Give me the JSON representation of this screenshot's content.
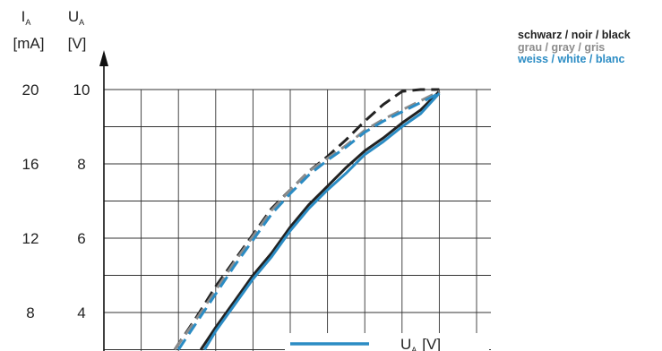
{
  "legend": [
    {
      "label": "schwarz / noir / black",
      "color": "#222222"
    },
    {
      "label": "grau / gray / gris",
      "color": "#8c8c8c"
    },
    {
      "label": "weiss / white / blanc",
      "color": "#2b8cc4"
    }
  ],
  "inline_legend": {
    "label": "U",
    "subscript": "A",
    "unit": "[V]",
    "color": "#2b8cc4"
  },
  "chart_data": {
    "type": "line",
    "title": "",
    "left_axis": {
      "label": "I",
      "subscript": "A",
      "unit": "[mA]",
      "ticks": [
        "20",
        "16",
        "12",
        "8"
      ]
    },
    "right_axis": {
      "label": "U",
      "subscript": "A",
      "unit": "[V]",
      "ticks": [
        "10",
        "8",
        "6",
        "4"
      ],
      "ylim": [
        3,
        10.4
      ]
    },
    "x_tick_labels": [],
    "grid": true,
    "series": [
      {
        "legend": "schwarz / noir / black",
        "color": "#222222",
        "style": "solid",
        "x": [
          2.6,
          3.0,
          3.5,
          4.0,
          4.5,
          5.0,
          5.5,
          6.0,
          6.5,
          7.0,
          7.5,
          8.0,
          8.5,
          9.0
        ],
        "y": [
          3.0,
          3.6,
          4.3,
          5.0,
          5.6,
          6.3,
          6.9,
          7.4,
          7.9,
          8.35,
          8.7,
          9.1,
          9.45,
          9.95
        ]
      },
      {
        "legend": "weiss / white / blanc",
        "color": "#2b8cc4",
        "style": "solid",
        "x": [
          2.7,
          3.0,
          3.5,
          4.0,
          4.5,
          5.0,
          5.5,
          6.0,
          6.5,
          7.0,
          7.5,
          8.0,
          8.5,
          9.0
        ],
        "y": [
          3.0,
          3.5,
          4.2,
          4.9,
          5.5,
          6.2,
          6.8,
          7.3,
          7.75,
          8.25,
          8.6,
          9.0,
          9.35,
          9.9
        ]
      },
      {
        "legend": "schwarz / noir / black",
        "color": "#222222",
        "style": "dashed",
        "x": [
          1.9,
          2.5,
          3.0,
          3.5,
          4.0,
          4.5,
          5.0,
          5.5,
          6.0,
          6.5,
          7.0,
          7.5,
          8.0,
          8.5,
          9.0
        ],
        "y": [
          3.0,
          3.9,
          4.7,
          5.4,
          6.1,
          6.8,
          7.3,
          7.8,
          8.2,
          8.65,
          9.15,
          9.6,
          9.95,
          10.0,
          10.0
        ]
      },
      {
        "legend": "grau / gray / gris",
        "color": "#8c8c8c",
        "style": "dashed",
        "x": [
          1.9,
          2.5,
          3.0,
          3.5,
          4.0,
          4.5,
          5.0,
          5.5,
          6.0,
          6.5,
          7.0,
          7.5,
          8.0,
          8.5,
          9.0
        ],
        "y": [
          3.0,
          3.85,
          4.6,
          5.35,
          6.05,
          6.75,
          7.3,
          7.8,
          8.15,
          8.5,
          8.9,
          9.2,
          9.45,
          9.7,
          9.95
        ]
      },
      {
        "legend": "weiss / white / blanc",
        "color": "#2b8cc4",
        "style": "dashed",
        "x": [
          2.0,
          2.5,
          3.0,
          3.5,
          4.0,
          4.5,
          5.0,
          5.5,
          6.0,
          6.5,
          7.0,
          7.5,
          8.0,
          8.5,
          9.0
        ],
        "y": [
          3.0,
          3.75,
          4.5,
          5.25,
          5.95,
          6.65,
          7.2,
          7.7,
          8.1,
          8.45,
          8.85,
          9.15,
          9.4,
          9.65,
          9.9
        ]
      }
    ]
  }
}
